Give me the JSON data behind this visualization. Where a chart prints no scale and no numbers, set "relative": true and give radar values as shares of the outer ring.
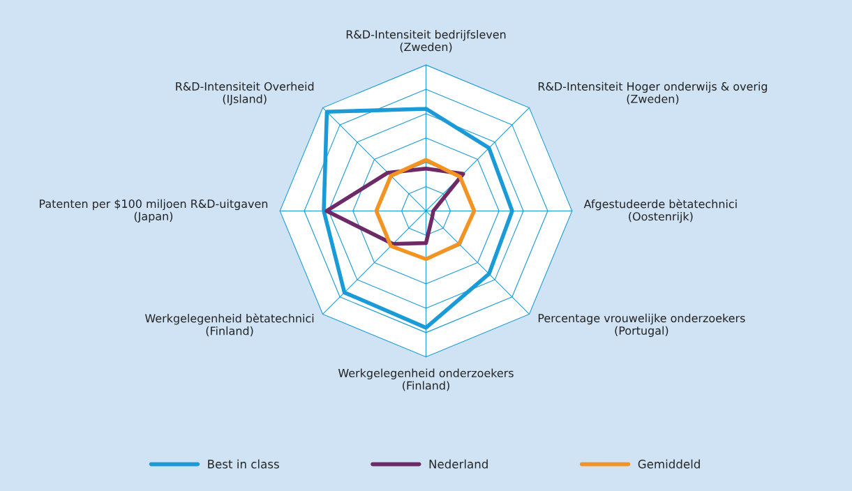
{
  "chart_data": {
    "type": "radar",
    "relative": true,
    "legend": "bottom",
    "categories": [
      "R&D-Intensiteit bedrijfsleven\n(Zweden)",
      "R&D-Intensiteit Hoger onderwijs & overig\n(Zweden)",
      "Afgestudeerde bètatechnici\n(Oostenrijk)",
      "Percentage vrouwelijke onderzoekers\n(Portugal)",
      "Werkgelegenheid onderzoekers\n(Finland)",
      "Werkgelegenheid bètatechnici\n(Finland)",
      "Patenten per $100 miljoen R&D-uitgaven\n(Japan)",
      "R&D-Intensiteit Overheid\n(IJsland)"
    ],
    "series": [
      {
        "name": "Best in class",
        "color": "#1a9ad6",
        "values": [
          0.7,
          0.61,
          0.59,
          0.61,
          0.8,
          0.79,
          0.7,
          0.96
        ]
      },
      {
        "name": "Nederland",
        "color": "#6e2a66",
        "values": [
          0.29,
          0.36,
          0.05,
          0.06,
          0.22,
          0.32,
          0.68,
          0.37
        ]
      },
      {
        "name": "Gemiddeld",
        "color": "#f39322",
        "values": [
          0.35,
          0.33,
          0.33,
          0.32,
          0.33,
          0.34,
          0.34,
          0.34
        ]
      }
    ]
  }
}
